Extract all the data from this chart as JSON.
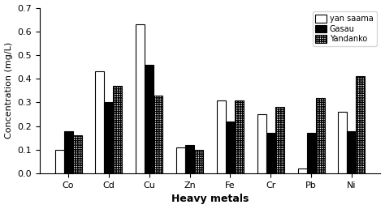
{
  "categories": [
    "Co",
    "Cd",
    "Cu",
    "Zn",
    "Fe",
    "Cr",
    "Pb",
    "Ni"
  ],
  "yan_saama": [
    0.1,
    0.43,
    0.63,
    0.11,
    0.31,
    0.25,
    0.02,
    0.26
  ],
  "gasau": [
    0.18,
    0.3,
    0.46,
    0.12,
    0.22,
    0.17,
    0.17,
    0.18
  ],
  "yandanko": [
    0.16,
    0.37,
    0.33,
    0.1,
    0.31,
    0.28,
    0.32,
    0.41
  ],
  "legend_labels": [
    "yan saama",
    "Gasau",
    "Yandanko"
  ],
  "xlabel": "Heavy metals",
  "ylabel": "Concentration (mg/L)",
  "ylim": [
    0,
    0.7
  ],
  "yticks": [
    0.0,
    0.1,
    0.2,
    0.3,
    0.4,
    0.5,
    0.6,
    0.7
  ],
  "bar_width": 0.22
}
